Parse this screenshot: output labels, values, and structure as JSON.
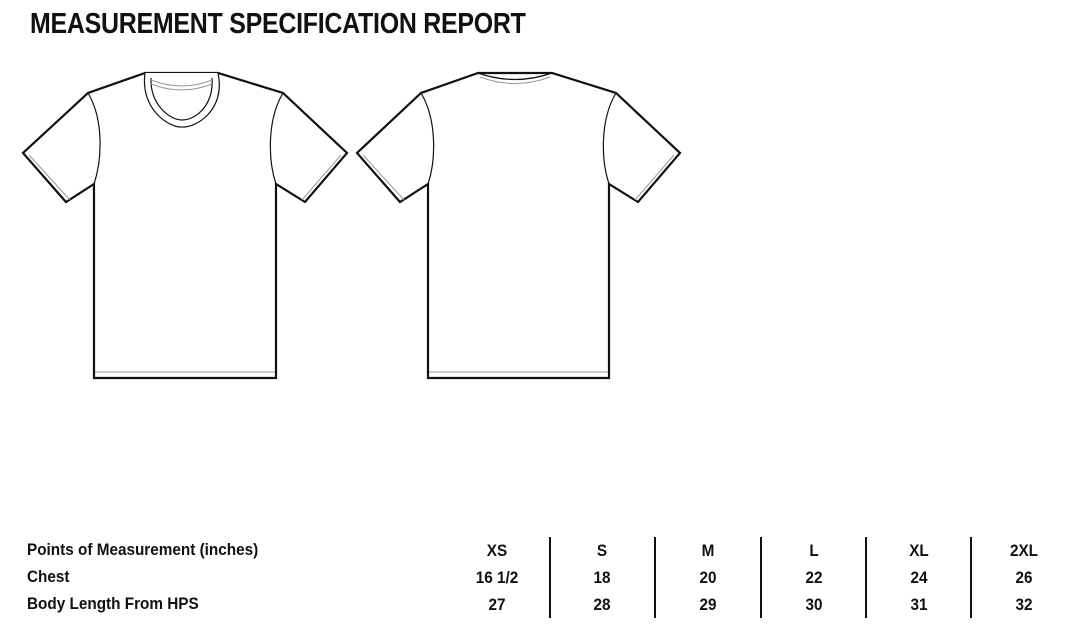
{
  "title": "MEASUREMENT SPECIFICATION REPORT",
  "illustrations": [
    "t-shirt-front",
    "t-shirt-back"
  ],
  "table": {
    "header_label": "Points of Measurement (inches)",
    "sizes": [
      "XS",
      "S",
      "M",
      "L",
      "XL",
      "2XL"
    ],
    "rows": [
      {
        "label": "Chest",
        "values": [
          "16 1/2",
          "18",
          "20",
          "22",
          "24",
          "26"
        ]
      },
      {
        "label": "Body Length From HPS",
        "values": [
          "27",
          "28",
          "29",
          "30",
          "31",
          "32"
        ]
      }
    ]
  }
}
